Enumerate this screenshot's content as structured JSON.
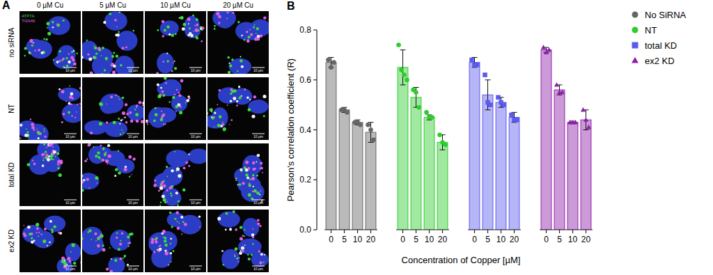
{
  "panel_labels": [
    "A",
    "B"
  ],
  "panel_a": {
    "columns": [
      "0 µM Cu",
      "5 µM Cu",
      "10 µM Cu",
      "20 µM Cu"
    ],
    "rows": [
      "no siRNA",
      "NT",
      "total KD",
      "ex2 KD"
    ],
    "channels": [
      {
        "name": "ATP7A",
        "color": "#3ddc3d"
      },
      {
        "name": "TGN46",
        "color": "#e060e0"
      }
    ],
    "scale_bar": "10 µm"
  },
  "chart_data": {
    "type": "bar",
    "x_label": "Concentration of Copper [µM]",
    "y_label": "Pearson's correlation coefficient (R)",
    "categories": [
      "0",
      "5",
      "10",
      "20"
    ],
    "ylim": [
      0,
      0.8
    ],
    "yticks": [
      {
        "value": 0,
        "label": "0.0"
      },
      0.2,
      0.4,
      0.6,
      0.8
    ],
    "grid": false,
    "legend": "top-right",
    "series": [
      {
        "name": "No SiRNA",
        "color": "#666666",
        "marker": "circle",
        "values": [
          0.67,
          0.48,
          0.43,
          0.39
        ],
        "errors": [
          0.02,
          0.01,
          0.01,
          0.04
        ],
        "points": [
          [
            0.68,
            0.65,
            0.67
          ],
          [
            0.48,
            0.48,
            0.47
          ],
          [
            0.43,
            0.43,
            0.42
          ],
          [
            0.42,
            0.4,
            0.36
          ]
        ]
      },
      {
        "name": "NT",
        "color": "#2ecc2e",
        "marker": "circle",
        "values": [
          0.65,
          0.53,
          0.45,
          0.35
        ],
        "errors": [
          0.07,
          0.04,
          0.01,
          0.03
        ],
        "points": [
          [
            0.74,
            0.64,
            0.62,
            0.6
          ],
          [
            0.56,
            0.55,
            0.49
          ],
          [
            0.47,
            0.45,
            0.45
          ],
          [
            0.38,
            0.35,
            0.34
          ]
        ]
      },
      {
        "name": "total KD",
        "color": "#5a5aee",
        "marker": "square",
        "values": [
          0.67,
          0.54,
          0.51,
          0.45
        ],
        "errors": [
          0.02,
          0.06,
          0.02,
          0.02
        ],
        "points": [
          [
            0.68,
            0.66,
            0.66
          ],
          [
            0.62,
            0.51,
            0.5
          ],
          [
            0.53,
            0.51,
            0.5
          ],
          [
            0.46,
            0.44,
            0.44
          ]
        ]
      },
      {
        "name": "ex2 KD",
        "color": "#8e1fa8",
        "marker": "triangle",
        "values": [
          0.72,
          0.56,
          0.43,
          0.44
        ],
        "errors": [
          0.01,
          0.02,
          0.005,
          0.04
        ],
        "points": [
          [
            0.73,
            0.71,
            0.72
          ],
          [
            0.58,
            0.55,
            0.55
          ],
          [
            0.43,
            0.43,
            0.43
          ],
          [
            0.48,
            0.44,
            0.41
          ]
        ]
      }
    ]
  }
}
